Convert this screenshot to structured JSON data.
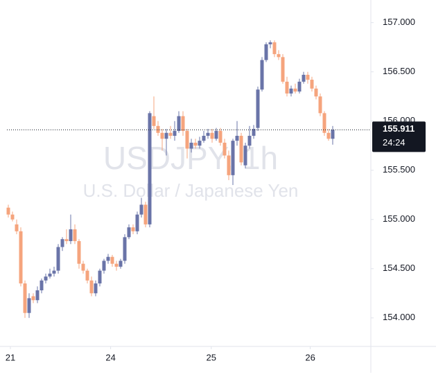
{
  "chart_data": {
    "type": "candlestick",
    "watermark": {
      "symbol": "USDJPY, 1h",
      "description": "U.S. Dollar / Japanese Yen"
    },
    "up_color": "#6a74a8",
    "down_color": "#f5a47d",
    "open": [
      155.12,
      155.05,
      154.95,
      154.88,
      154.35,
      154.05,
      154.22,
      154.18,
      154.28,
      154.38,
      154.42,
      154.45,
      154.48,
      154.72,
      154.8,
      154.78,
      154.9,
      154.78,
      154.55,
      154.48,
      154.38,
      154.25,
      154.35,
      154.48,
      154.58,
      154.62,
      154.55,
      154.52,
      154.58,
      154.82,
      154.92,
      154.88,
      155.05,
      155.15,
      154.95,
      156.05,
      155.95,
      155.88,
      155.82,
      155.88,
      155.85,
      155.9,
      156.05,
      155.9,
      155.72,
      155.78,
      155.75,
      155.8,
      155.85,
      155.88,
      155.82,
      155.9,
      155.78,
      155.65,
      155.45,
      155.8,
      155.85,
      155.55,
      155.75,
      155.85,
      155.93,
      156.32,
      156.62,
      156.78,
      156.8,
      156.68,
      156.65,
      156.4,
      156.28,
      156.33,
      156.3,
      156.4,
      156.47,
      156.42,
      156.33,
      156.25,
      156.08,
      155.88,
      155.82
    ],
    "high": [
      155.15,
      155.08,
      155.0,
      154.92,
      154.38,
      154.25,
      154.25,
      154.32,
      154.4,
      154.45,
      154.5,
      154.52,
      154.75,
      154.82,
      154.9,
      155.05,
      154.95,
      154.8,
      154.58,
      154.5,
      154.42,
      154.38,
      154.5,
      154.6,
      154.65,
      154.64,
      154.58,
      154.6,
      154.85,
      154.95,
      154.95,
      155.08,
      155.22,
      155.18,
      156.1,
      156.25,
      156.0,
      155.92,
      155.92,
      155.95,
      156.0,
      156.1,
      156.1,
      155.92,
      155.82,
      155.82,
      155.84,
      155.9,
      155.92,
      155.92,
      155.93,
      155.93,
      155.82,
      155.7,
      155.82,
      156.0,
      155.88,
      155.78,
      155.95,
      155.96,
      156.35,
      156.65,
      156.8,
      156.82,
      156.82,
      156.72,
      156.68,
      156.45,
      156.36,
      156.38,
      156.43,
      156.5,
      156.5,
      156.45,
      156.36,
      156.28,
      156.1,
      155.92,
      155.95
    ],
    "low": [
      155.02,
      154.98,
      154.85,
      154.32,
      154.0,
      154.0,
      154.15,
      154.15,
      154.25,
      154.35,
      154.4,
      154.42,
      154.45,
      154.68,
      154.75,
      154.75,
      154.75,
      154.5,
      154.45,
      154.35,
      154.22,
      154.22,
      154.32,
      154.45,
      154.55,
      154.52,
      154.48,
      154.5,
      154.55,
      154.8,
      154.85,
      154.85,
      155.02,
      154.92,
      154.92,
      155.92,
      155.85,
      155.7,
      155.65,
      155.82,
      155.8,
      155.88,
      155.85,
      155.62,
      155.68,
      155.72,
      155.72,
      155.78,
      155.82,
      155.78,
      155.8,
      155.75,
      155.62,
      155.4,
      155.35,
      155.75,
      155.55,
      155.52,
      155.72,
      155.82,
      155.9,
      156.3,
      156.6,
      156.74,
      156.65,
      156.62,
      156.38,
      156.25,
      156.25,
      156.28,
      156.28,
      156.38,
      156.38,
      156.3,
      156.22,
      156.05,
      155.85,
      155.8,
      155.76
    ],
    "close": [
      155.05,
      155.0,
      154.88,
      154.35,
      154.05,
      154.2,
      154.18,
      154.28,
      154.38,
      154.42,
      154.45,
      154.48,
      154.72,
      154.8,
      154.78,
      154.9,
      154.78,
      154.55,
      154.48,
      154.38,
      154.25,
      154.35,
      154.48,
      154.58,
      154.62,
      154.55,
      154.52,
      154.58,
      154.82,
      154.92,
      154.88,
      155.05,
      155.15,
      154.95,
      156.08,
      155.95,
      155.88,
      155.82,
      155.88,
      155.85,
      155.9,
      156.05,
      155.9,
      155.72,
      155.78,
      155.75,
      155.8,
      155.85,
      155.88,
      155.82,
      155.9,
      155.78,
      155.65,
      155.45,
      155.8,
      155.85,
      155.58,
      155.75,
      155.85,
      155.92,
      156.32,
      156.62,
      156.78,
      156.8,
      156.68,
      156.65,
      156.4,
      156.28,
      156.33,
      156.3,
      156.4,
      156.47,
      156.42,
      156.33,
      156.25,
      156.08,
      155.88,
      155.82,
      155.911
    ],
    "last_price": 155.911,
    "countdown": "24:24",
    "xlim": [
      -2,
      87.17
    ],
    "xticks": [
      {
        "value": 0.5,
        "label": "21"
      },
      {
        "value": 24.6,
        "label": "24"
      },
      {
        "value": 48.8,
        "label": "25"
      },
      {
        "value": 72.6,
        "label": "26"
      }
    ],
    "ylim": [
      153.71,
      157.23
    ],
    "yticks": [
      {
        "value": 154,
        "label": "154.000"
      },
      {
        "value": 154.5,
        "label": "154.500"
      },
      {
        "value": 155,
        "label": "155.000"
      },
      {
        "value": 155.5,
        "label": "155.500"
      },
      {
        "value": 156,
        "label": "156.000"
      },
      {
        "value": 156.5,
        "label": "156.500"
      },
      {
        "value": 157,
        "label": "157.000"
      }
    ]
  }
}
